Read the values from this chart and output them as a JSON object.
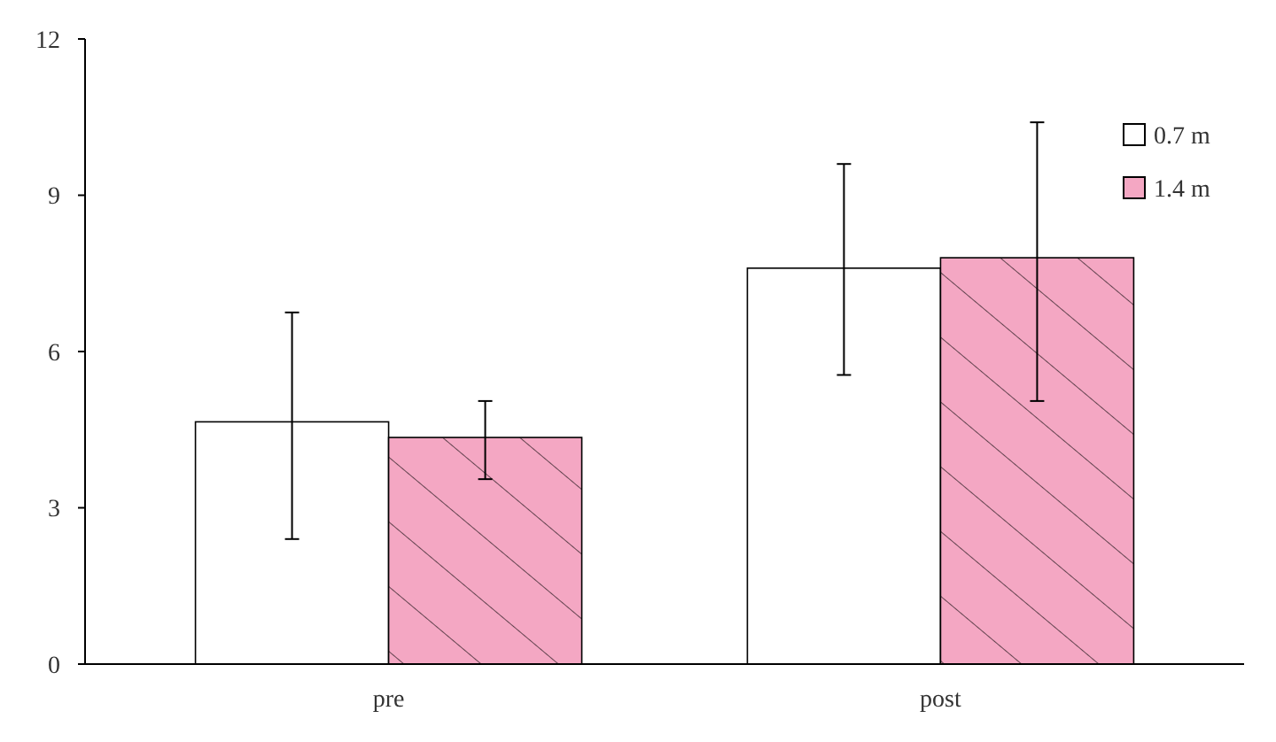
{
  "chart_data": {
    "type": "bar",
    "categories": [
      "pre",
      "post"
    ],
    "series": [
      {
        "name": "0.7 m",
        "color": "#ffffff",
        "values": [
          4.65,
          7.6
        ],
        "errors": [
          [
            2.4,
            6.75
          ],
          [
            5.55,
            9.6
          ]
        ]
      },
      {
        "name": "1.4 m",
        "color": "#f4a7c3",
        "values": [
          4.35,
          7.8
        ],
        "errors": [
          [
            3.55,
            5.05
          ],
          [
            5.05,
            10.4
          ]
        ]
      }
    ],
    "ylim": [
      0,
      12
    ],
    "yticks": [
      0,
      3,
      6,
      9,
      12
    ],
    "legend": "top right",
    "grid": false
  }
}
